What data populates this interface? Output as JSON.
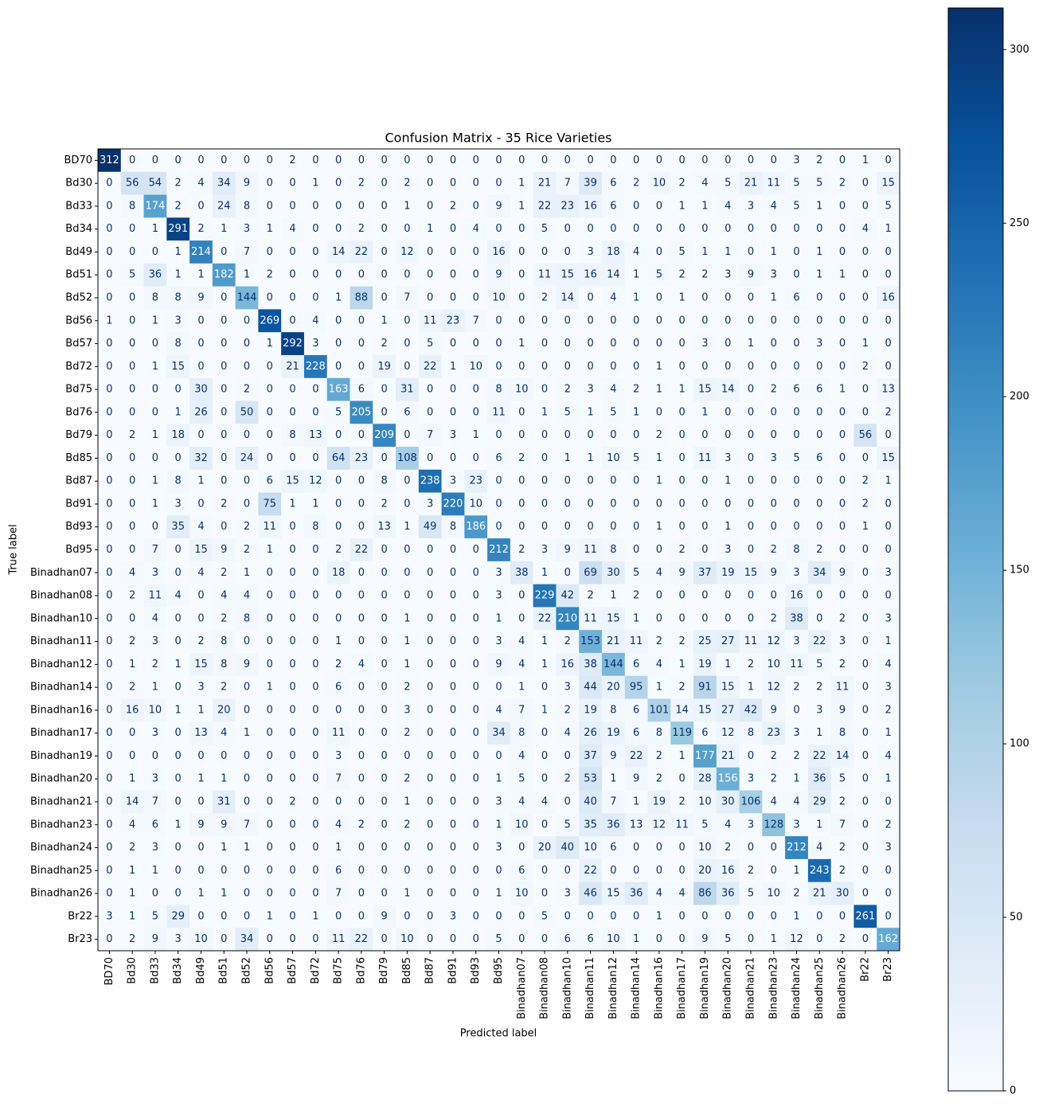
{
  "chart_data": {
    "type": "heatmap",
    "title": "Confusion Matrix - 35 Rice Varieties",
    "x_label": "Predicted label",
    "y_label": "True label",
    "categories": [
      "BD70",
      "Bd30",
      "Bd33",
      "Bd34",
      "Bd49",
      "Bd51",
      "Bd52",
      "Bd56",
      "Bd57",
      "Bd72",
      "Bd75",
      "Bd76",
      "Bd79",
      "Bd85",
      "Bd87",
      "Bd91",
      "Bd93",
      "Bd95",
      "Binadhan07",
      "Binadhan08",
      "Binadhan10",
      "Binadhan11",
      "Binadhan12",
      "Binadhan14",
      "Binadhan16",
      "Binadhan17",
      "Binadhan19",
      "Binadhan20",
      "Binadhan21",
      "Binadhan23",
      "Binadhan24",
      "Binadhan25",
      "Binadhan26",
      "Br22",
      "Br23"
    ],
    "values": [
      [
        312,
        0,
        0,
        0,
        0,
        0,
        0,
        0,
        2,
        0,
        0,
        0,
        0,
        0,
        0,
        0,
        0,
        0,
        0,
        0,
        0,
        0,
        0,
        0,
        0,
        0,
        0,
        0,
        0,
        0,
        3,
        2,
        0,
        1,
        0
      ],
      [
        0,
        56,
        54,
        2,
        4,
        34,
        9,
        0,
        0,
        1,
        0,
        2,
        0,
        2,
        0,
        0,
        0,
        0,
        1,
        21,
        7,
        39,
        6,
        2,
        10,
        2,
        4,
        5,
        21,
        11,
        5,
        5,
        2,
        0,
        15
      ],
      [
        0,
        8,
        174,
        2,
        0,
        24,
        8,
        0,
        0,
        0,
        0,
        0,
        0,
        1,
        0,
        2,
        0,
        9,
        1,
        22,
        23,
        16,
        6,
        0,
        0,
        1,
        1,
        4,
        3,
        4,
        5,
        1,
        0,
        0,
        5
      ],
      [
        0,
        0,
        1,
        291,
        2,
        1,
        3,
        1,
        4,
        0,
        0,
        2,
        0,
        0,
        1,
        0,
        4,
        0,
        0,
        5,
        0,
        0,
        0,
        0,
        0,
        0,
        0,
        0,
        0,
        0,
        0,
        0,
        0,
        4,
        1
      ],
      [
        0,
        0,
        0,
        1,
        214,
        0,
        7,
        0,
        0,
        0,
        14,
        22,
        0,
        12,
        0,
        0,
        0,
        16,
        0,
        0,
        0,
        3,
        18,
        4,
        0,
        5,
        1,
        1,
        0,
        1,
        0,
        1,
        0,
        0,
        0
      ],
      [
        0,
        5,
        36,
        1,
        1,
        182,
        1,
        2,
        0,
        0,
        0,
        0,
        0,
        0,
        0,
        0,
        0,
        9,
        0,
        11,
        15,
        16,
        14,
        1,
        5,
        2,
        2,
        3,
        9,
        3,
        0,
        1,
        1,
        0,
        0
      ],
      [
        0,
        0,
        8,
        8,
        9,
        0,
        144,
        0,
        0,
        0,
        1,
        88,
        0,
        7,
        0,
        0,
        0,
        10,
        0,
        2,
        14,
        0,
        4,
        1,
        0,
        1,
        0,
        0,
        0,
        1,
        6,
        0,
        0,
        0,
        16
      ],
      [
        1,
        0,
        1,
        3,
        0,
        0,
        0,
        269,
        0,
        4,
        0,
        0,
        1,
        0,
        11,
        23,
        7,
        0,
        0,
        0,
        0,
        0,
        0,
        0,
        0,
        0,
        0,
        0,
        0,
        0,
        0,
        0,
        0,
        0,
        0
      ],
      [
        0,
        0,
        0,
        8,
        0,
        0,
        0,
        1,
        292,
        3,
        0,
        0,
        2,
        0,
        5,
        0,
        0,
        0,
        1,
        0,
        0,
        0,
        0,
        0,
        0,
        0,
        3,
        0,
        1,
        0,
        0,
        3,
        0,
        1,
        0
      ],
      [
        0,
        0,
        1,
        15,
        0,
        0,
        0,
        0,
        21,
        228,
        0,
        0,
        19,
        0,
        22,
        1,
        10,
        0,
        0,
        0,
        0,
        0,
        0,
        0,
        1,
        0,
        0,
        0,
        0,
        0,
        0,
        0,
        0,
        2,
        0
      ],
      [
        0,
        0,
        0,
        0,
        30,
        0,
        2,
        0,
        0,
        0,
        163,
        6,
        0,
        31,
        0,
        0,
        0,
        8,
        10,
        0,
        2,
        3,
        4,
        2,
        1,
        1,
        15,
        14,
        0,
        2,
        6,
        6,
        1,
        0,
        13
      ],
      [
        0,
        0,
        0,
        1,
        26,
        0,
        50,
        0,
        0,
        0,
        5,
        205,
        0,
        6,
        0,
        0,
        0,
        11,
        0,
        1,
        5,
        1,
        5,
        1,
        0,
        0,
        1,
        0,
        0,
        0,
        0,
        0,
        0,
        0,
        2
      ],
      [
        0,
        2,
        1,
        18,
        0,
        0,
        0,
        0,
        8,
        13,
        0,
        0,
        209,
        0,
        7,
        3,
        1,
        0,
        0,
        0,
        0,
        0,
        0,
        0,
        2,
        0,
        0,
        0,
        0,
        0,
        0,
        0,
        0,
        56,
        0
      ],
      [
        0,
        0,
        0,
        0,
        32,
        0,
        24,
        0,
        0,
        0,
        64,
        23,
        0,
        108,
        0,
        0,
        0,
        6,
        2,
        0,
        1,
        1,
        10,
        5,
        1,
        0,
        11,
        3,
        0,
        3,
        5,
        6,
        0,
        0,
        15
      ],
      [
        0,
        0,
        1,
        8,
        1,
        0,
        0,
        6,
        15,
        12,
        0,
        0,
        8,
        0,
        238,
        3,
        23,
        0,
        0,
        0,
        0,
        0,
        0,
        0,
        1,
        0,
        0,
        1,
        0,
        0,
        0,
        0,
        0,
        2,
        1
      ],
      [
        0,
        0,
        1,
        3,
        0,
        2,
        0,
        75,
        1,
        1,
        0,
        0,
        2,
        0,
        3,
        220,
        10,
        0,
        0,
        0,
        0,
        0,
        0,
        0,
        0,
        0,
        0,
        0,
        0,
        0,
        0,
        0,
        0,
        2,
        0
      ],
      [
        0,
        0,
        0,
        35,
        4,
        0,
        2,
        11,
        0,
        8,
        0,
        0,
        13,
        1,
        49,
        8,
        186,
        0,
        0,
        0,
        0,
        0,
        0,
        0,
        1,
        0,
        0,
        1,
        0,
        0,
        0,
        0,
        0,
        1,
        0
      ],
      [
        0,
        0,
        7,
        0,
        15,
        9,
        2,
        1,
        0,
        0,
        2,
        22,
        0,
        0,
        0,
        0,
        0,
        212,
        2,
        3,
        9,
        11,
        8,
        0,
        0,
        2,
        0,
        3,
        0,
        2,
        8,
        2,
        0,
        0,
        0
      ],
      [
        0,
        4,
        3,
        0,
        4,
        2,
        1,
        0,
        0,
        0,
        18,
        0,
        0,
        0,
        0,
        0,
        0,
        3,
        38,
        1,
        0,
        69,
        30,
        5,
        4,
        9,
        37,
        19,
        15,
        9,
        3,
        34,
        9,
        0,
        3
      ],
      [
        0,
        2,
        11,
        4,
        0,
        4,
        4,
        0,
        0,
        0,
        0,
        0,
        0,
        0,
        0,
        0,
        0,
        3,
        0,
        229,
        42,
        2,
        1,
        2,
        0,
        0,
        0,
        0,
        0,
        0,
        16,
        0,
        0,
        0,
        0
      ],
      [
        0,
        0,
        4,
        0,
        0,
        2,
        8,
        0,
        0,
        0,
        0,
        0,
        0,
        1,
        0,
        0,
        0,
        1,
        0,
        22,
        210,
        11,
        15,
        1,
        0,
        0,
        0,
        0,
        0,
        2,
        38,
        0,
        2,
        0,
        3
      ],
      [
        0,
        2,
        3,
        0,
        2,
        8,
        0,
        0,
        0,
        0,
        1,
        0,
        0,
        1,
        0,
        0,
        0,
        3,
        4,
        1,
        2,
        153,
        21,
        11,
        2,
        2,
        25,
        27,
        11,
        12,
        3,
        22,
        3,
        0,
        1
      ],
      [
        0,
        1,
        2,
        1,
        15,
        8,
        9,
        0,
        0,
        0,
        2,
        4,
        0,
        1,
        0,
        0,
        0,
        9,
        4,
        1,
        16,
        38,
        144,
        6,
        4,
        1,
        19,
        1,
        2,
        10,
        11,
        5,
        2,
        0,
        4
      ],
      [
        0,
        2,
        1,
        0,
        3,
        2,
        0,
        1,
        0,
        0,
        6,
        0,
        0,
        2,
        0,
        0,
        0,
        0,
        1,
        0,
        3,
        44,
        20,
        95,
        1,
        2,
        91,
        15,
        1,
        12,
        2,
        2,
        11,
        0,
        3
      ],
      [
        0,
        16,
        10,
        1,
        1,
        20,
        0,
        0,
        0,
        0,
        0,
        0,
        0,
        3,
        0,
        0,
        0,
        4,
        7,
        1,
        2,
        19,
        8,
        6,
        101,
        14,
        15,
        27,
        42,
        9,
        0,
        3,
        9,
        0,
        2
      ],
      [
        0,
        0,
        3,
        0,
        13,
        4,
        1,
        0,
        0,
        0,
        11,
        0,
        0,
        2,
        0,
        0,
        0,
        34,
        8,
        0,
        4,
        26,
        19,
        6,
        8,
        119,
        6,
        12,
        8,
        23,
        3,
        1,
        8,
        0,
        1
      ],
      [
        0,
        0,
        0,
        0,
        0,
        0,
        0,
        0,
        0,
        0,
        3,
        0,
        0,
        0,
        0,
        0,
        0,
        0,
        4,
        0,
        0,
        37,
        9,
        22,
        2,
        1,
        177,
        21,
        0,
        2,
        2,
        22,
        14,
        0,
        4
      ],
      [
        0,
        1,
        3,
        0,
        1,
        1,
        0,
        0,
        0,
        0,
        7,
        0,
        0,
        2,
        0,
        0,
        0,
        1,
        5,
        0,
        2,
        53,
        1,
        9,
        2,
        0,
        28,
        156,
        3,
        2,
        1,
        36,
        5,
        0,
        1
      ],
      [
        0,
        14,
        7,
        0,
        0,
        31,
        0,
        0,
        2,
        0,
        0,
        0,
        0,
        1,
        0,
        0,
        0,
        3,
        4,
        4,
        0,
        40,
        7,
        1,
        19,
        2,
        10,
        30,
        106,
        4,
        4,
        29,
        2,
        0,
        0
      ],
      [
        0,
        4,
        6,
        1,
        9,
        9,
        7,
        0,
        0,
        0,
        4,
        2,
        0,
        2,
        0,
        0,
        0,
        1,
        10,
        0,
        5,
        35,
        36,
        13,
        12,
        11,
        5,
        4,
        3,
        128,
        3,
        1,
        7,
        0,
        2
      ],
      [
        0,
        2,
        3,
        0,
        0,
        1,
        1,
        0,
        0,
        0,
        1,
        0,
        0,
        0,
        0,
        0,
        0,
        3,
        0,
        20,
        40,
        10,
        6,
        0,
        0,
        0,
        10,
        2,
        0,
        0,
        212,
        4,
        2,
        0,
        3
      ],
      [
        0,
        1,
        1,
        0,
        0,
        0,
        0,
        0,
        0,
        0,
        6,
        0,
        0,
        0,
        0,
        0,
        0,
        0,
        6,
        0,
        0,
        22,
        0,
        0,
        0,
        0,
        20,
        16,
        2,
        0,
        1,
        243,
        2,
        0,
        0
      ],
      [
        0,
        1,
        0,
        0,
        1,
        1,
        0,
        0,
        0,
        0,
        7,
        0,
        0,
        1,
        0,
        0,
        0,
        1,
        10,
        0,
        3,
        46,
        15,
        36,
        4,
        4,
        86,
        36,
        5,
        10,
        2,
        21,
        30,
        0,
        0
      ],
      [
        3,
        1,
        5,
        29,
        0,
        0,
        0,
        1,
        0,
        1,
        0,
        0,
        9,
        0,
        0,
        3,
        0,
        0,
        0,
        5,
        0,
        0,
        0,
        0,
        1,
        0,
        0,
        0,
        0,
        0,
        1,
        0,
        0,
        261,
        0
      ],
      [
        0,
        2,
        9,
        3,
        10,
        0,
        34,
        0,
        0,
        0,
        11,
        22,
        0,
        10,
        0,
        0,
        0,
        5,
        0,
        0,
        6,
        6,
        10,
        1,
        0,
        0,
        9,
        5,
        0,
        1,
        12,
        0,
        2,
        0,
        162
      ]
    ],
    "colormap": [
      "#f7fbff",
      "#deebf7",
      "#c6dbef",
      "#9ecae1",
      "#6baed6",
      "#4292c6",
      "#2171b5",
      "#08519c",
      "#08306b"
    ],
    "clim": [
      0,
      312
    ],
    "cticks": [
      0,
      50,
      100,
      150,
      200,
      250,
      300
    ]
  }
}
